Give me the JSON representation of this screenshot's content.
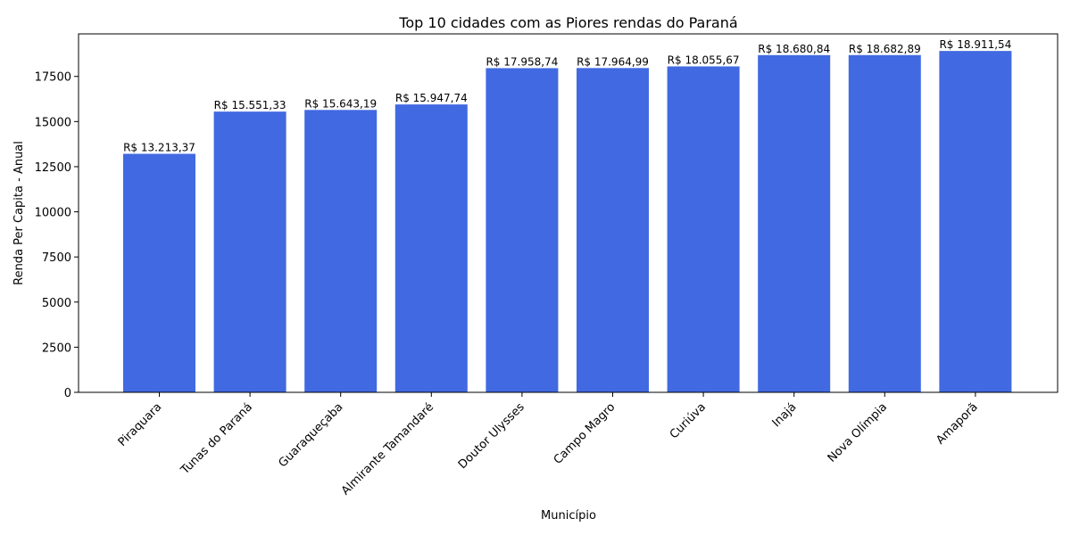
{
  "chart_data": {
    "type": "bar",
    "title": "Top 10 cidades com as Piores rendas do Paraná",
    "xlabel": "Município",
    "ylabel": "Renda Per Capita - Anual",
    "categories": [
      "Piraquara",
      "Tunas do Paraná",
      "Guaraqueçaba",
      "Almirante Tamandaré",
      "Doutor Ulysses",
      "Campo Magro",
      "Curiúva",
      "Inajá",
      "Nova Olímpia",
      "Amaporã"
    ],
    "values": [
      13213.37,
      15551.33,
      15643.19,
      15947.74,
      17958.74,
      17964.99,
      18055.67,
      18680.84,
      18682.89,
      18911.54
    ],
    "data_labels": [
      "R$ 13.213,37",
      "R$ 15.551,33",
      "R$ 15.643,19",
      "R$ 15.947,74",
      "R$ 17.958,74",
      "R$ 17.964,99",
      "R$ 18.055,67",
      "R$ 18.680,84",
      "R$ 18.682,89",
      "R$ 18.911,54"
    ],
    "yticks": [
      0,
      2500,
      5000,
      7500,
      10000,
      12500,
      15000,
      17500
    ],
    "ylim": [
      0,
      19857
    ],
    "grid": false,
    "bar_color": "#4169e1"
  }
}
